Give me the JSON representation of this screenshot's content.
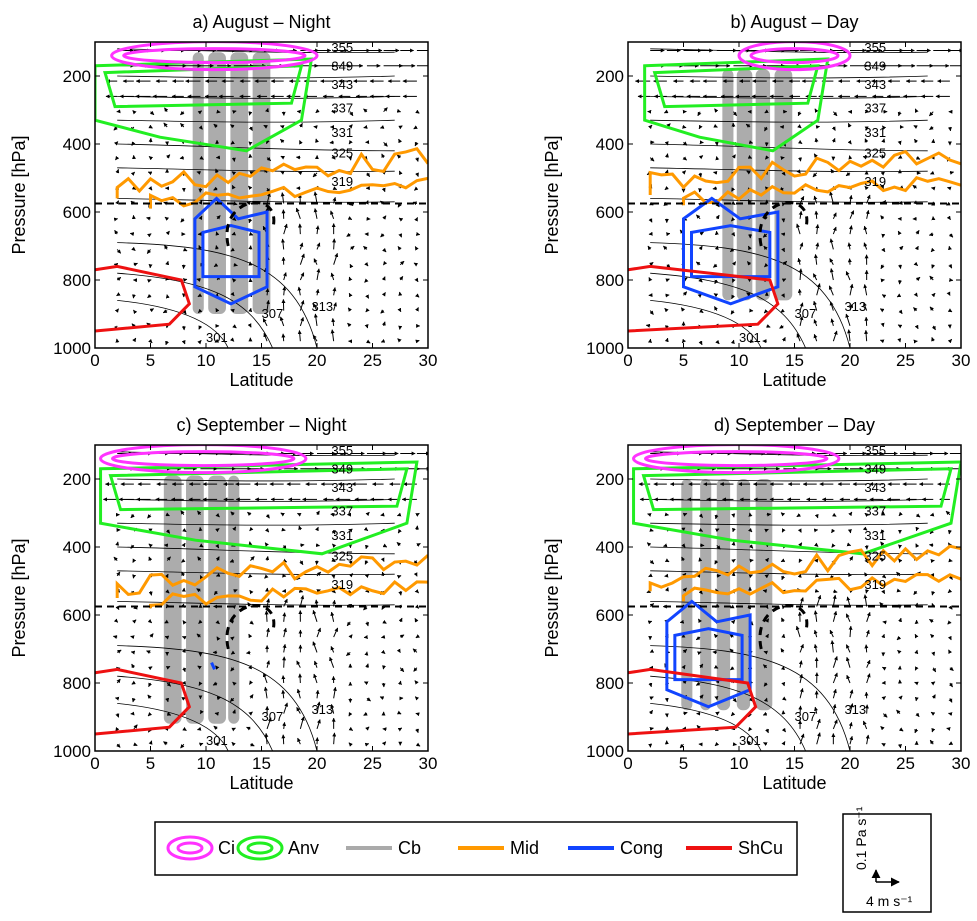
{
  "chart_data": {
    "type": "contour",
    "xlabel": "Latitude",
    "ylabel": "Pressure [hPa]",
    "xlim": [
      0,
      30
    ],
    "ylim": [
      1000,
      100
    ],
    "x_ticks": [
      "0",
      "5",
      "10",
      "15",
      "20",
      "25",
      "30"
    ],
    "y_ticks": [
      "200",
      "400",
      "600",
      "800",
      "1000"
    ],
    "dashed_reference_pressure": 575,
    "theta_labels": [
      "355",
      "349",
      "343",
      "337",
      "331",
      "325",
      "319",
      "313",
      "307",
      "301"
    ],
    "panels": [
      {
        "title": "a) August – Night",
        "cb_columns": [
          [
            8.8,
            9.8
          ],
          [
            10.2,
            11.8
          ],
          [
            12.2,
            13.8
          ],
          [
            14.2,
            15.8
          ]
        ],
        "cb_top": 130,
        "cb_bottom": 900,
        "cong_range": [
          9,
          15.5
        ],
        "shcu_lat_range": [
          0,
          8.5
        ],
        "anv_range": [
          0,
          19.5
        ],
        "ci_range": [
          1.5,
          20
        ],
        "mid_level": 530
      },
      {
        "title": "b) August – Day",
        "cb_columns": [
          [
            8.5,
            9.5
          ],
          [
            9.8,
            11.2
          ],
          [
            11.5,
            12.8
          ],
          [
            13.2,
            14.8
          ]
        ],
        "cb_top": 180,
        "cb_bottom": 860,
        "cong_range": [
          5,
          13.5
        ],
        "shcu_lat_range": [
          0,
          13.5
        ],
        "anv_range": [
          1.5,
          18
        ],
        "ci_range": [
          10,
          20
        ],
        "mid_level": 520
      },
      {
        "title": "c) September – Night",
        "cb_columns": [
          [
            6.2,
            7.8
          ],
          [
            8.2,
            9.8
          ],
          [
            10.2,
            11.8
          ],
          [
            12,
            13
          ]
        ],
        "cb_top": 190,
        "cb_bottom": 920,
        "cong_range": [
          10.5,
          11
        ],
        "shcu_lat_range": [
          0,
          8.5
        ],
        "anv_range": [
          0.5,
          29
        ],
        "ci_range": [
          0.5,
          19
        ],
        "mid_level": 520
      },
      {
        "title": "d) September – Day",
        "cb_columns": [
          [
            4.8,
            5.8
          ],
          [
            6.5,
            7.5
          ],
          [
            8,
            9.2
          ],
          [
            9.8,
            11
          ],
          [
            11.5,
            13
          ]
        ],
        "cb_top": 200,
        "cb_bottom": 880,
        "cong_range": [
          3.5,
          11
        ],
        "shcu_lat_range": [
          0,
          11.5
        ],
        "anv_range": [
          0.5,
          30
        ],
        "ci_range": [
          0.5,
          19
        ],
        "mid_level": 500
      }
    ],
    "legend": [
      {
        "label": "Ci",
        "color": "#ff33ff",
        "style": "contour"
      },
      {
        "label": "Anv",
        "color": "#22ee22",
        "style": "contour"
      },
      {
        "label": "Cb",
        "color": "#aaaaaa",
        "style": "line"
      },
      {
        "label": "Mid",
        "color": "#ff9900",
        "style": "line"
      },
      {
        "label": "Cong",
        "color": "#1144ff",
        "style": "line"
      },
      {
        "label": "ShCu",
        "color": "#ee1111",
        "style": "line"
      }
    ],
    "vector_key": {
      "vertical": "0.1 Pa s⁻¹",
      "horizontal": "4 m s⁻¹"
    }
  }
}
